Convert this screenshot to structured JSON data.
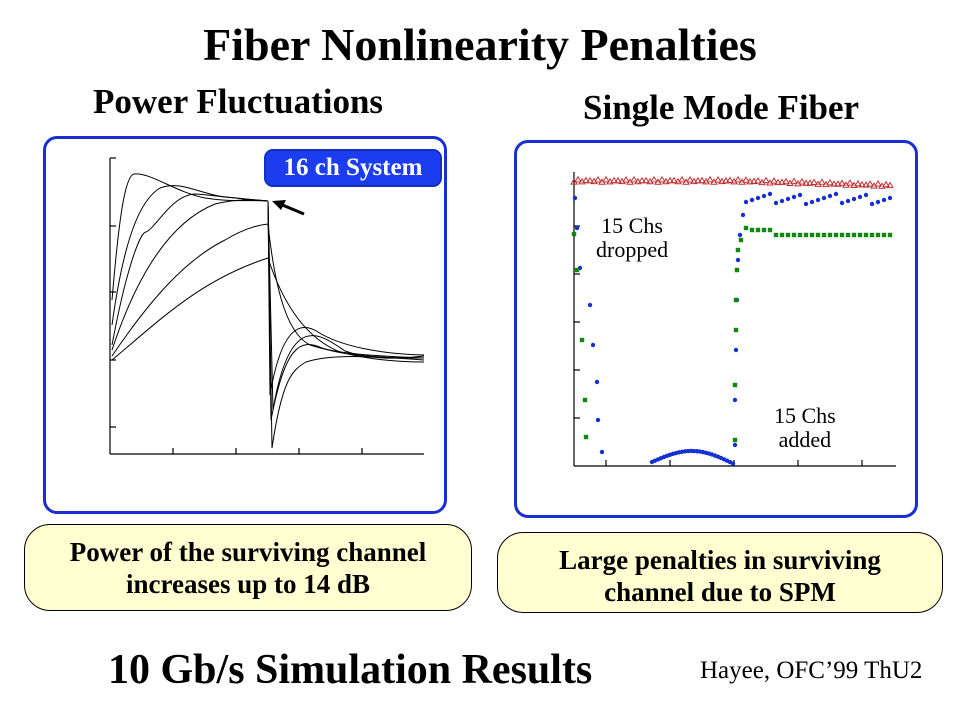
{
  "slide": {
    "title": "Fiber Nonlinearity Penalties",
    "left_heading": "Power Fluctuations",
    "right_heading": "Single Mode Fiber",
    "badge": "16 ch System",
    "left_caption": [
      "Power of the surviving channel",
      "increases up to 14 dB"
    ],
    "right_caption": [
      "Large penalties in surviving",
      "channel due to SPM"
    ],
    "bottom_title": "10 Gb/s Simulation Results",
    "credit": "Hayee, OFC’99 ThU2",
    "annotations": {
      "dropped": [
        "15 Chs",
        "dropped"
      ],
      "added": [
        "15 Chs",
        "added"
      ]
    }
  },
  "colors": {
    "panel_border": "#1a2fd0",
    "badge_bg": "#1c3cf0",
    "caption_bg": "#ffffd2",
    "series_triangles": "#c03030",
    "series_circles": "#1530d0",
    "series_squares": "#108810"
  }
}
